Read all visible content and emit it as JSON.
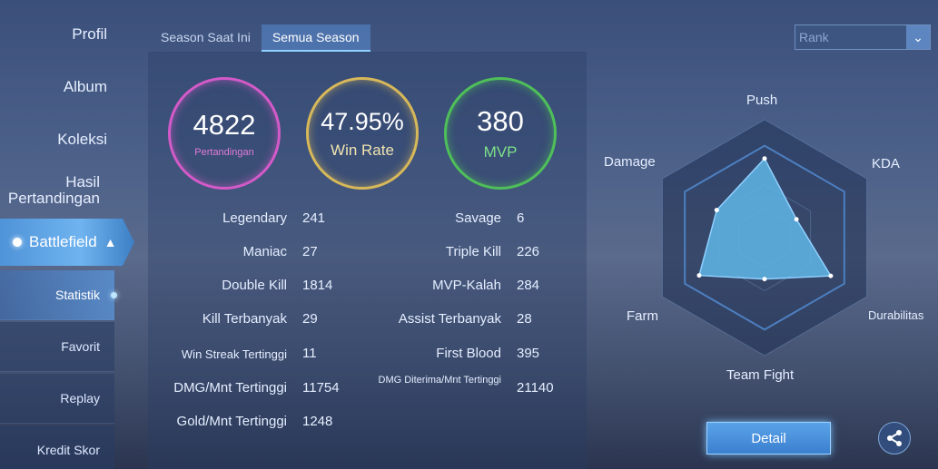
{
  "sidebar": {
    "items": [
      {
        "label": "Profil"
      },
      {
        "label": "Album"
      },
      {
        "label": "Koleksi"
      },
      {
        "label": "Hasil Pertandingan"
      }
    ],
    "battlefield": {
      "label": "Battlefield"
    },
    "sub_items": [
      {
        "label": "Statistik"
      },
      {
        "label": "Favorit"
      },
      {
        "label": "Replay"
      },
      {
        "label": "Kredit Skor"
      }
    ]
  },
  "tabs": [
    {
      "label": "Season Saat Ini"
    },
    {
      "label": "Semua Season"
    }
  ],
  "rank_select": {
    "value": "Rank"
  },
  "summary": {
    "matches": {
      "value": "4822",
      "caption": "Pertandingan"
    },
    "win_rate": {
      "value": "47.95%",
      "caption": "Win Rate"
    },
    "mvp": {
      "value": "380",
      "caption": "MVP"
    }
  },
  "stats_left": [
    {
      "label": "Legendary",
      "value": "241"
    },
    {
      "label": "Maniac",
      "value": "27"
    },
    {
      "label": "Double Kill",
      "value": "1814"
    },
    {
      "label": "Kill Terbanyak",
      "value": "29"
    },
    {
      "label": "Win Streak Tertinggi",
      "value": "11"
    },
    {
      "label": "DMG/Mnt Tertinggi",
      "value": "11754"
    },
    {
      "label": "Gold/Mnt Tertinggi",
      "value": "1248"
    }
  ],
  "stats_right": [
    {
      "label": "Savage",
      "value": "6"
    },
    {
      "label": "Triple Kill",
      "value": "226"
    },
    {
      "label": "MVP-Kalah",
      "value": "284"
    },
    {
      "label": "Assist Terbanyak",
      "value": "28"
    },
    {
      "label": "First Blood",
      "value": "395"
    },
    {
      "label": "DMG Diterima/Mnt Tertinggi",
      "value": "21140"
    }
  ],
  "radar": {
    "axes": [
      "Push",
      "KDA",
      "Durabilitas",
      "Team Fight",
      "Farm",
      "Damage"
    ],
    "values": [
      0.86,
      0.4,
      0.83,
      0.45,
      0.82,
      0.6
    ],
    "fill_color": "#5fb6e6",
    "line_color": "#8fd0ff"
  },
  "buttons": {
    "detail": "Detail",
    "share_icon": "share-icon"
  }
}
